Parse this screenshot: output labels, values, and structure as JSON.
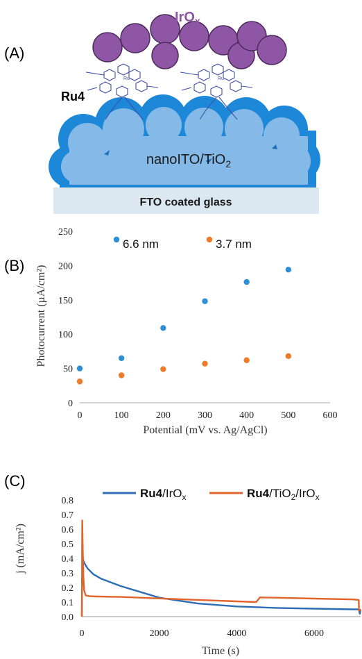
{
  "panels": {
    "a_label": "(A)",
    "b_label": "(B)",
    "c_label": "(C)"
  },
  "schematic": {
    "catalyst_label_main": "IrO",
    "catalyst_label_sub": "x",
    "dye_label": "Ru4",
    "metal_label": "Ru",
    "electrode_label_main": "nanoITO/TiO",
    "electrode_label_sub": "2",
    "substrate_label": "FTO coated glass",
    "colors": {
      "catalyst": "#8e56a4",
      "electrode_outer": "#1e88d8",
      "electrode_inner": "#84b9e8",
      "substrate": "#dbe8f1",
      "dye": "#3f4fa8"
    }
  },
  "chart_data": [
    {
      "type": "scatter",
      "xlabel": "Potential (mV vs. Ag/AgCl)",
      "ylabel": "Photocurrent  (µA/cm²)",
      "xlim": [
        0,
        600
      ],
      "ylim": [
        0,
        250
      ],
      "x_ticks": [
        "0",
        "100",
        "200",
        "300",
        "400",
        "500",
        "600"
      ],
      "y_ticks": [
        "0",
        "50",
        "100",
        "150",
        "200",
        "250"
      ],
      "grid": false,
      "legend_position": "top",
      "series": [
        {
          "name": "6.6 nm",
          "color": "#2e8fd6",
          "x": [
            0,
            100,
            200,
            300,
            400,
            500
          ],
          "y": [
            50,
            65,
            109,
            148,
            176,
            194
          ]
        },
        {
          "name": "3.7 nm",
          "color": "#ee7a2a",
          "x": [
            0,
            100,
            200,
            300,
            400,
            500
          ],
          "y": [
            31,
            40,
            49,
            57,
            62,
            68
          ]
        }
      ]
    },
    {
      "type": "line",
      "xlabel": "Time (s)",
      "ylabel": "j (mA/cm²)",
      "xlim": [
        0,
        7200
      ],
      "ylim": [
        0,
        0.8
      ],
      "x_ticks": [
        "0",
        "2000",
        "4000",
        "6000"
      ],
      "x_tick_values": [
        0,
        2000,
        4000,
        6000
      ],
      "y_ticks": [
        "0.0",
        "0.1",
        "0.2",
        "0.3",
        "0.4",
        "0.5",
        "0.6",
        "0.7",
        "0.8"
      ],
      "grid": false,
      "legend_position": "top",
      "series": [
        {
          "name_bold": "Ru4",
          "name_rest": "/IrO",
          "name_sub": "x",
          "color": "#2c6db3",
          "x": [
            0,
            8,
            20,
            30,
            60,
            150,
            300,
            500,
            600,
            800,
            1000,
            1500,
            2000,
            2500,
            3000,
            3500,
            4000,
            5000,
            6000,
            7000,
            7150,
            7180,
            7200
          ],
          "y": [
            0.0,
            0.24,
            0.42,
            0.39,
            0.37,
            0.33,
            0.29,
            0.26,
            0.25,
            0.23,
            0.21,
            0.17,
            0.13,
            0.11,
            0.09,
            0.08,
            0.07,
            0.06,
            0.055,
            0.05,
            0.05,
            0.02,
            0.05
          ]
        },
        {
          "name_bold": "Ru4",
          "name_rest": "/TiO",
          "name_sub2": "2",
          "name_rest2": "/IrO",
          "name_sub": "x",
          "color": "#e0642b",
          "x": [
            0,
            10,
            25,
            40,
            60,
            100,
            200,
            400,
            800,
            1000,
            1500,
            2000,
            3000,
            4000,
            4500,
            4550,
            4600,
            5000,
            6000,
            7000,
            7150,
            7160,
            7200
          ],
          "y": [
            0.0,
            0.66,
            0.45,
            0.28,
            0.18,
            0.145,
            0.14,
            0.138,
            0.136,
            0.135,
            0.13,
            0.125,
            0.115,
            0.105,
            0.1,
            0.115,
            0.132,
            0.13,
            0.124,
            0.118,
            0.115,
            0.04,
            0.05
          ]
        }
      ]
    }
  ]
}
